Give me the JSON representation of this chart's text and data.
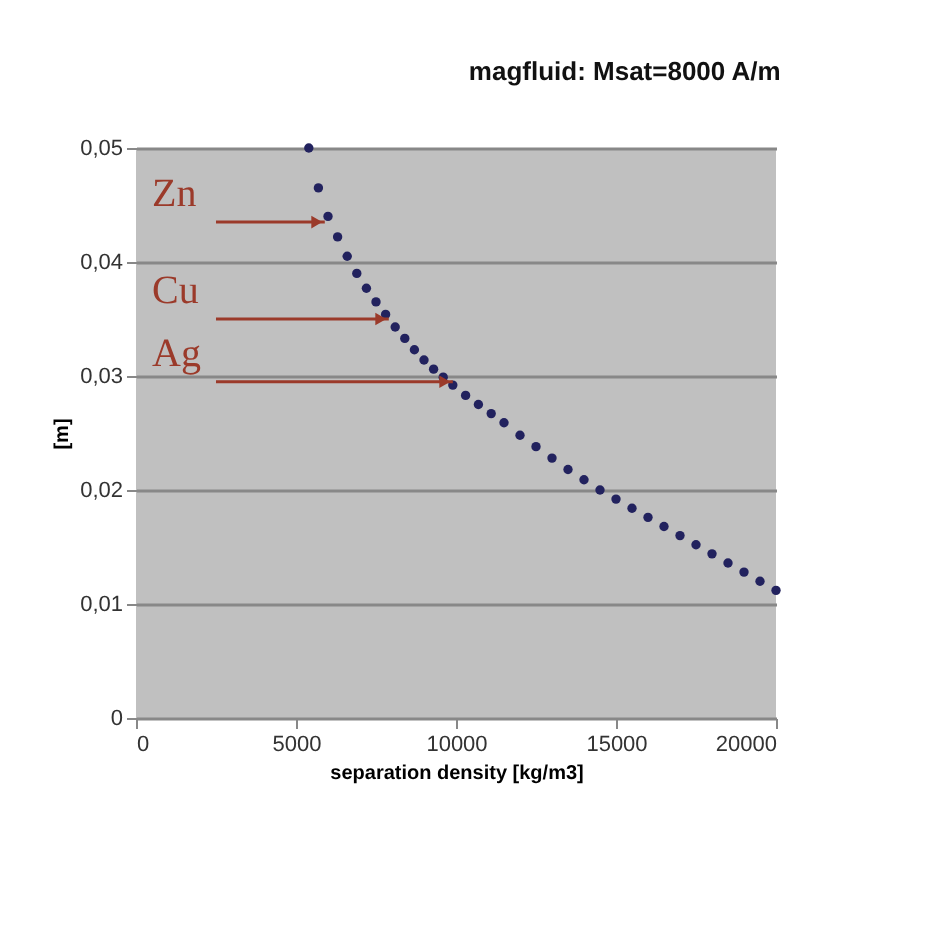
{
  "chart_data": {
    "type": "scatter",
    "title": "magfluid: Msat=8000 A/m",
    "xlabel": "separation density [kg/m3]",
    "ylabel": "[m]",
    "x": [
      5400,
      5700,
      6000,
      6300,
      6600,
      6900,
      7200,
      7500,
      7800,
      8100,
      8400,
      8700,
      9000,
      9300,
      9600,
      9900,
      10300,
      10700,
      11100,
      11500,
      12000,
      12500,
      13000,
      13500,
      14000,
      14500,
      15000,
      15500,
      16000,
      16500,
      17000,
      17500,
      18000,
      18500,
      19000,
      19500,
      20000
    ],
    "series": [
      {
        "color": "#22225e",
        "values": [
          0.05,
          0.0465,
          0.044,
          0.0422,
          0.0405,
          0.039,
          0.0377,
          0.0365,
          0.0354,
          0.0343,
          0.0333,
          0.0323,
          0.0314,
          0.0306,
          0.0299,
          0.0292,
          0.0283,
          0.0275,
          0.0267,
          0.0259,
          0.0248,
          0.0238,
          0.0228,
          0.0218,
          0.0209,
          0.02,
          0.0192,
          0.0184,
          0.0176,
          0.0168,
          0.016,
          0.0152,
          0.0144,
          0.0136,
          0.0128,
          0.012,
          0.0112
        ]
      }
    ],
    "marker": "circle",
    "xlim": [
      0,
      20000
    ],
    "xticks": [
      0,
      5000,
      10000,
      15000,
      20000
    ],
    "ylim": [
      0,
      0.05
    ],
    "yticks": [
      {
        "value": 0,
        "label": "0"
      },
      {
        "value": 0.01,
        "label": "0,01"
      },
      {
        "value": 0.02,
        "label": "0,02"
      },
      {
        "value": 0.03,
        "label": "0,03"
      },
      {
        "value": 0.04,
        "label": "0,04"
      },
      {
        "value": 0.05,
        "label": "0,05"
      }
    ],
    "grid": "y",
    "annotations": [
      {
        "text": "Zn",
        "x": 5900,
        "y": 0.0435
      },
      {
        "text": "Cu",
        "x": 7900,
        "y": 0.035
      },
      {
        "text": "Ag",
        "x": 9900,
        "y": 0.0295
      }
    ]
  }
}
